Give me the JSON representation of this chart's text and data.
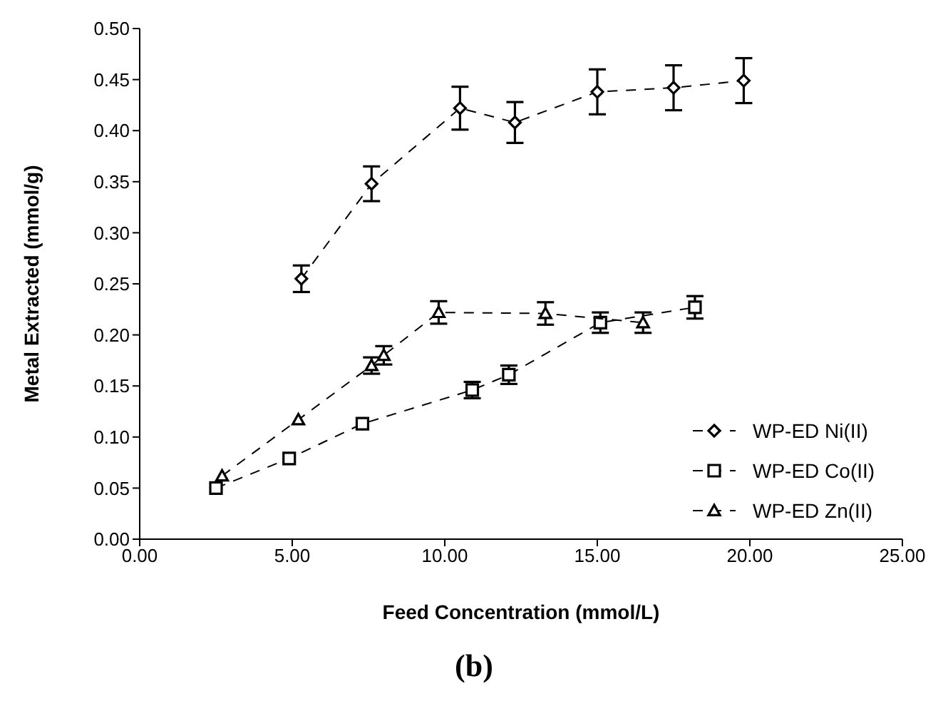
{
  "chart_data": {
    "type": "line",
    "title": "(b)",
    "xlabel": "Feed Concentration (mmol/L)",
    "ylabel": "Metal Extracted (mmol/g)",
    "xlim": [
      0,
      25
    ],
    "xticks": [
      {
        "value": 0,
        "label": "0.00"
      },
      {
        "value": 5,
        "label": "5.00"
      },
      {
        "value": 10,
        "label": "10.00"
      },
      {
        "value": 15,
        "label": "15.00"
      },
      {
        "value": 20,
        "label": "20.00"
      },
      {
        "value": 25,
        "label": "25.00"
      }
    ],
    "ylim": [
      0,
      0.5
    ],
    "yticks": [
      {
        "value": 0,
        "label": "0.00"
      },
      {
        "value": 0.05,
        "label": "0.05"
      },
      {
        "value": 0.1,
        "label": "0.10"
      },
      {
        "value": 0.15,
        "label": "0.15"
      },
      {
        "value": 0.2,
        "label": "0.20"
      },
      {
        "value": 0.25,
        "label": "0.25"
      },
      {
        "value": 0.3,
        "label": "0.30"
      },
      {
        "value": 0.35,
        "label": "0.35"
      },
      {
        "value": 0.4,
        "label": "0.40"
      },
      {
        "value": 0.45,
        "label": "0.45"
      },
      {
        "value": 0.5,
        "label": "0.50"
      }
    ],
    "grid": false,
    "legend": "bottom right",
    "line_style": "dashed",
    "series": [
      {
        "name": "WP-ED Ni(II)",
        "color": "#000000",
        "marker": "diamond",
        "x": [
          5.3,
          7.6,
          10.5,
          12.3,
          15.0,
          17.5,
          19.8
        ],
        "values": [
          0.255,
          0.348,
          0.422,
          0.408,
          0.438,
          0.442,
          0.449
        ],
        "errors": [
          0.013,
          0.017,
          0.021,
          0.02,
          0.022,
          0.022,
          0.022
        ]
      },
      {
        "name": "WP-ED Co(II)",
        "color": "#000000",
        "marker": "square",
        "x": [
          2.5,
          4.9,
          7.3,
          10.9,
          12.1,
          15.1,
          18.2
        ],
        "values": [
          0.05,
          0.079,
          0.113,
          0.146,
          0.161,
          0.212,
          0.227
        ],
        "errors": [
          null,
          null,
          null,
          0.008,
          0.009,
          0.01,
          0.011
        ]
      },
      {
        "name": "WP-ED Zn(II)",
        "color": "#000000",
        "marker": "triangle",
        "x": [
          2.7,
          5.2,
          7.6,
          8.0,
          9.8,
          13.3,
          16.5
        ],
        "values": [
          0.062,
          0.117,
          0.17,
          0.18,
          0.222,
          0.221,
          0.212
        ],
        "errors": [
          null,
          null,
          0.008,
          0.009,
          0.011,
          0.011,
          0.01
        ]
      }
    ]
  }
}
